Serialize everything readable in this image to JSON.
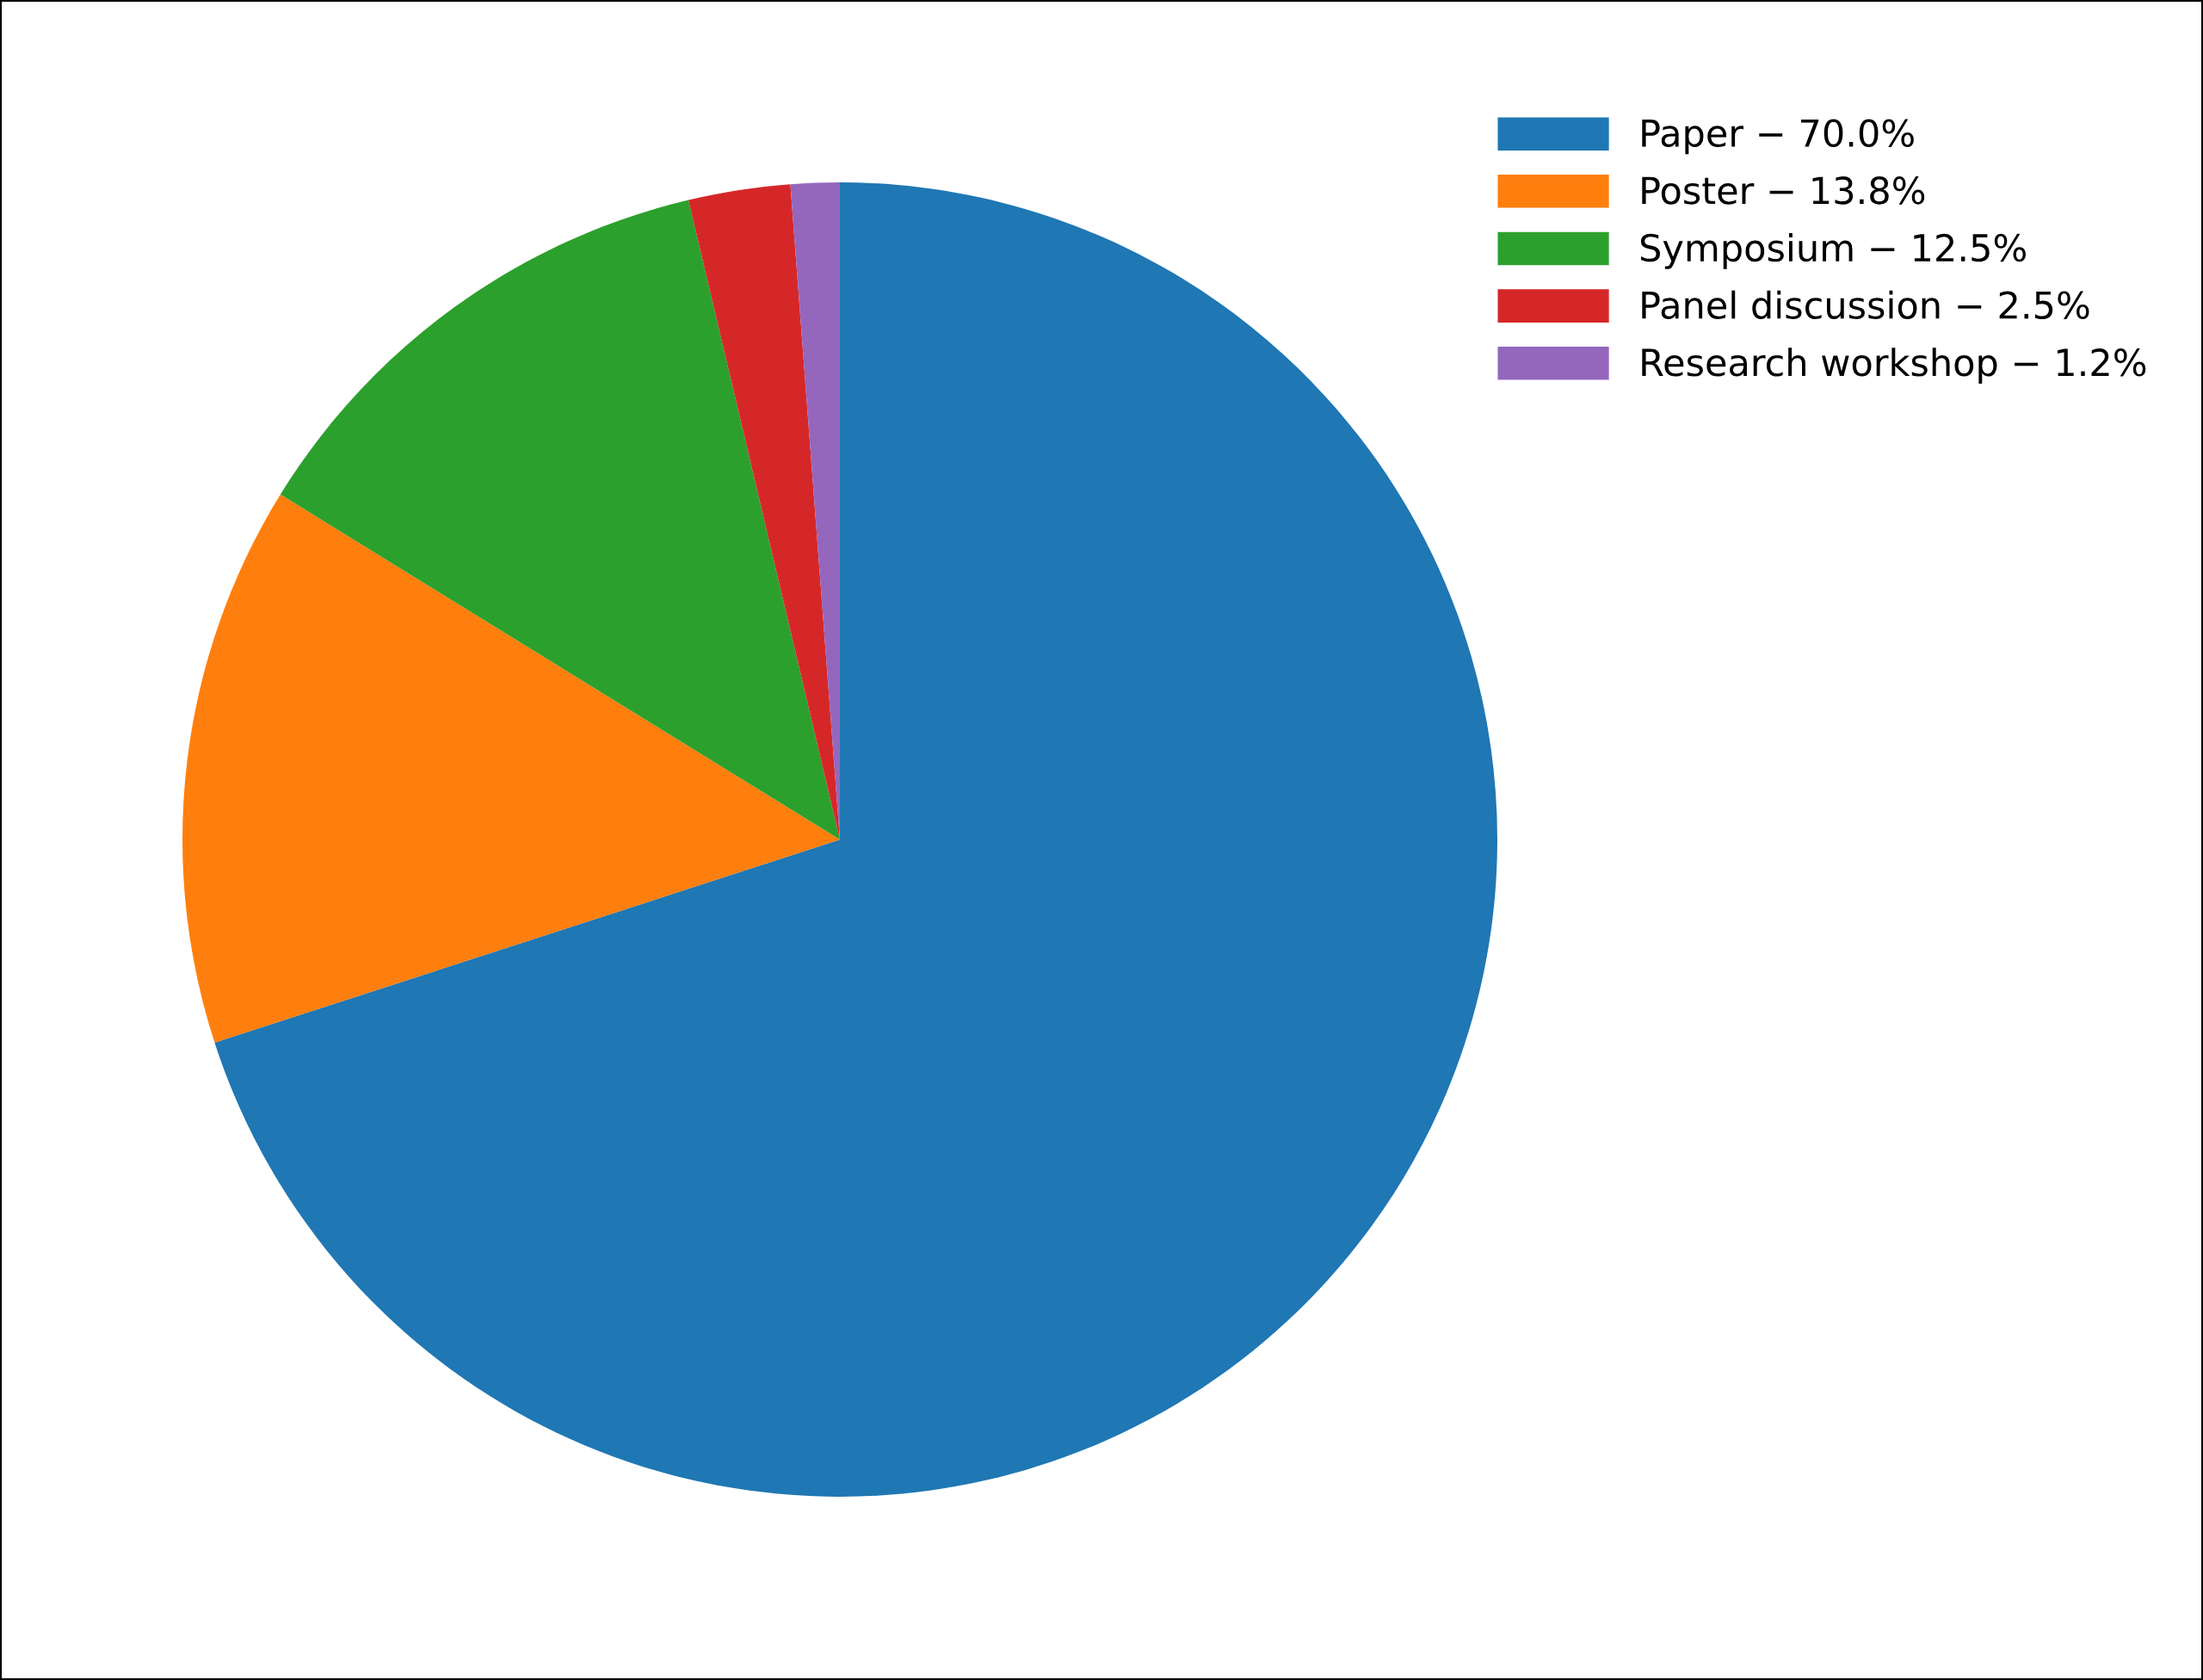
{
  "chart_data": {
    "type": "pie",
    "categories": [
      "Paper − 70.0%",
      "Poster − 13.8%",
      "Symposium − 12.5%",
      "Panel discussion − 2.5%",
      "Research workshop − 1.2%"
    ],
    "values": [
      70.0,
      13.8,
      12.5,
      2.5,
      1.2
    ],
    "colors": [
      "#1f77b4",
      "#ff7f0e",
      "#2ca02c",
      "#d62728",
      "#9467bd"
    ],
    "legend": "top right"
  }
}
